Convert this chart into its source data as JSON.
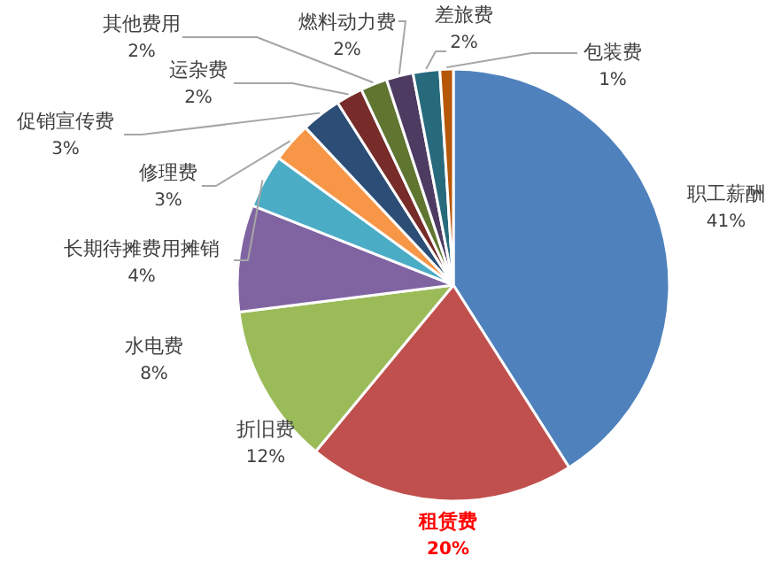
{
  "chart_data": {
    "type": "pie",
    "categories": [
      "职工薪酬",
      "租赁费",
      "折旧费",
      "水电费",
      "长期待摊费用摊销",
      "修理费",
      "促销宣传费",
      "运杂费",
      "其他费用",
      "燃料动力费",
      "差旅费",
      "包装费"
    ],
    "values": [
      41,
      20,
      12,
      8,
      4,
      3,
      3,
      2,
      2,
      2,
      2,
      1
    ],
    "value_labels": [
      "41%",
      "20%",
      "12%",
      "8%",
      "4%",
      "3%",
      "3%",
      "2%",
      "2%",
      "2%",
      "2%",
      "1%"
    ],
    "colors": [
      "#4f81bd",
      "#c0504d",
      "#9bbb59",
      "#8064a2",
      "#4bacc6",
      "#f79646",
      "#2c4d75",
      "#772c2a",
      "#5f7530",
      "#4d3b62",
      "#276a7c",
      "#b65708"
    ],
    "legend": false
  }
}
